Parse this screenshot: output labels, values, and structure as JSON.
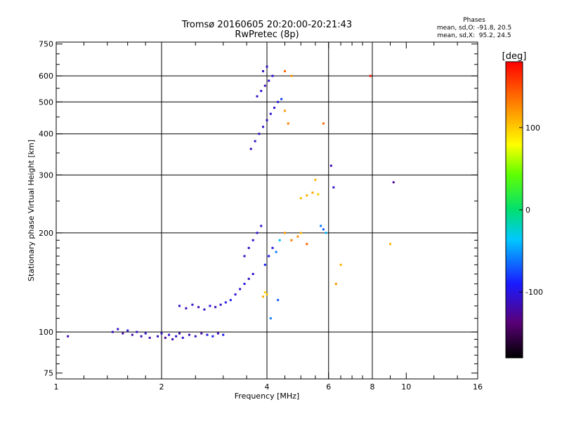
{
  "header": {
    "title_line1": "Tromsø 20160605 20:20:00-20:21:43",
    "title_line2": "RwPretec (8p)",
    "phases_label": "Phases",
    "stats_o": "mean, sd,O: -91.8, 20.5",
    "stats_x": "mean, sd,X:  95.2, 24.5"
  },
  "colorbar": {
    "label": "[deg]",
    "ticks": [
      "100",
      "0",
      "-100"
    ],
    "tick_values": [
      100,
      0,
      -100
    ],
    "range": [
      -180,
      180
    ]
  },
  "chart_data": {
    "type": "scatter",
    "title": "",
    "xlabel": "Frequency [MHz]",
    "ylabel": "Stationary phase Virtual Height [km]",
    "x_scale": "log",
    "y_scale": "log",
    "xlim": [
      1,
      16
    ],
    "ylim": [
      72,
      760
    ],
    "x_ticks": [
      1,
      2,
      4,
      6,
      8,
      10,
      16
    ],
    "x_tick_labels": [
      "1",
      "2",
      "4",
      "6",
      "8",
      "10",
      "16"
    ],
    "y_ticks": [
      75,
      100,
      200,
      300,
      400,
      500,
      600,
      750
    ],
    "y_tick_labels": [
      "75",
      "100",
      "200",
      "300",
      "400",
      "500",
      "600",
      "750"
    ],
    "major_grid_x": [
      2,
      4,
      6,
      8
    ],
    "major_grid_y": [
      100,
      200,
      300,
      400,
      500,
      600
    ],
    "grid": true,
    "color_variable": "Phase [deg]",
    "series": [
      {
        "points": [
          [
            1.08,
            97,
            -120
          ],
          [
            1.45,
            100,
            -115
          ],
          [
            1.5,
            102,
            -110
          ],
          [
            1.55,
            99,
            -125
          ],
          [
            1.6,
            101,
            -105
          ],
          [
            1.65,
            98,
            -120
          ],
          [
            1.7,
            100,
            -112
          ],
          [
            1.75,
            97,
            -118
          ],
          [
            1.8,
            99,
            -108
          ],
          [
            1.85,
            96,
            -122
          ],
          [
            1.95,
            97,
            -115
          ],
          [
            2.0,
            99,
            -110
          ],
          [
            2.05,
            96,
            -125
          ],
          [
            2.1,
            98,
            -105
          ],
          [
            2.15,
            95,
            -118
          ],
          [
            2.2,
            97,
            -112
          ],
          [
            2.25,
            99,
            -120
          ],
          [
            2.3,
            96,
            -108
          ],
          [
            2.4,
            98,
            -115
          ],
          [
            2.5,
            97,
            -110
          ],
          [
            2.6,
            99,
            -120
          ],
          [
            2.7,
            98,
            -100
          ],
          [
            2.8,
            97,
            -90
          ],
          [
            2.9,
            99,
            -115
          ],
          [
            3.0,
            98,
            -95
          ],
          [
            2.25,
            120,
            -110
          ],
          [
            2.35,
            118,
            -115
          ],
          [
            2.45,
            121,
            -108
          ],
          [
            2.55,
            119,
            -120
          ],
          [
            2.65,
            117,
            -112
          ],
          [
            2.75,
            120,
            -105
          ],
          [
            2.85,
            119,
            -118
          ],
          [
            2.95,
            121,
            -110
          ],
          [
            3.05,
            123,
            -100
          ],
          [
            3.15,
            125,
            -95
          ],
          [
            3.25,
            130,
            -105
          ],
          [
            3.35,
            135,
            -110
          ],
          [
            3.45,
            140,
            -100
          ],
          [
            3.55,
            145,
            -112
          ],
          [
            3.65,
            150,
            -108
          ],
          [
            3.45,
            170,
            -115
          ],
          [
            3.55,
            180,
            -110
          ],
          [
            3.65,
            190,
            -105
          ],
          [
            3.75,
            200,
            -108
          ],
          [
            3.85,
            210,
            -112
          ],
          [
            3.95,
            160,
            -90
          ],
          [
            4.05,
            170,
            -95
          ],
          [
            4.15,
            180,
            -100
          ],
          [
            4.25,
            175,
            -60
          ],
          [
            4.35,
            190,
            -40
          ],
          [
            4.5,
            200,
            120
          ],
          [
            4.7,
            190,
            130
          ],
          [
            4.9,
            195,
            125
          ],
          [
            5.0,
            200,
            110
          ],
          [
            5.2,
            185,
            140
          ],
          [
            4.0,
            130,
            100
          ],
          [
            3.9,
            128,
            110
          ],
          [
            3.95,
            132,
            95
          ],
          [
            5.0,
            255,
            105
          ],
          [
            5.2,
            260,
            110
          ],
          [
            5.4,
            265,
            115
          ],
          [
            5.6,
            262,
            100
          ],
          [
            5.5,
            290,
            110
          ],
          [
            5.7,
            210,
            -60
          ],
          [
            5.8,
            205,
            -70
          ],
          [
            5.9,
            200,
            -40
          ],
          [
            3.6,
            360,
            -115
          ],
          [
            3.7,
            380,
            -110
          ],
          [
            3.8,
            400,
            -112
          ],
          [
            3.9,
            420,
            -108
          ],
          [
            4.0,
            440,
            -115
          ],
          [
            4.1,
            460,
            -105
          ],
          [
            4.2,
            480,
            -110
          ],
          [
            4.3,
            500,
            -100
          ],
          [
            3.75,
            520,
            -112
          ],
          [
            3.85,
            540,
            -108
          ],
          [
            3.95,
            560,
            -115
          ],
          [
            4.05,
            580,
            -110
          ],
          [
            4.15,
            600,
            -105
          ],
          [
            3.9,
            620,
            -112
          ],
          [
            4.0,
            640,
            -108
          ],
          [
            4.4,
            510,
            -80
          ],
          [
            4.5,
            470,
            120
          ],
          [
            4.6,
            430,
            130
          ],
          [
            4.7,
            600,
            120
          ],
          [
            4.5,
            620,
            140
          ],
          [
            5.8,
            430,
            140
          ],
          [
            7.9,
            600,
            170
          ],
          [
            6.1,
            320,
            -120
          ],
          [
            6.2,
            275,
            -110
          ],
          [
            9.2,
            285,
            -130
          ],
          [
            9.0,
            185,
            110
          ],
          [
            4.1,
            110,
            -60
          ],
          [
            4.3,
            125,
            -70
          ],
          [
            6.5,
            160,
            110
          ],
          [
            6.3,
            140,
            120
          ]
        ]
      }
    ]
  }
}
